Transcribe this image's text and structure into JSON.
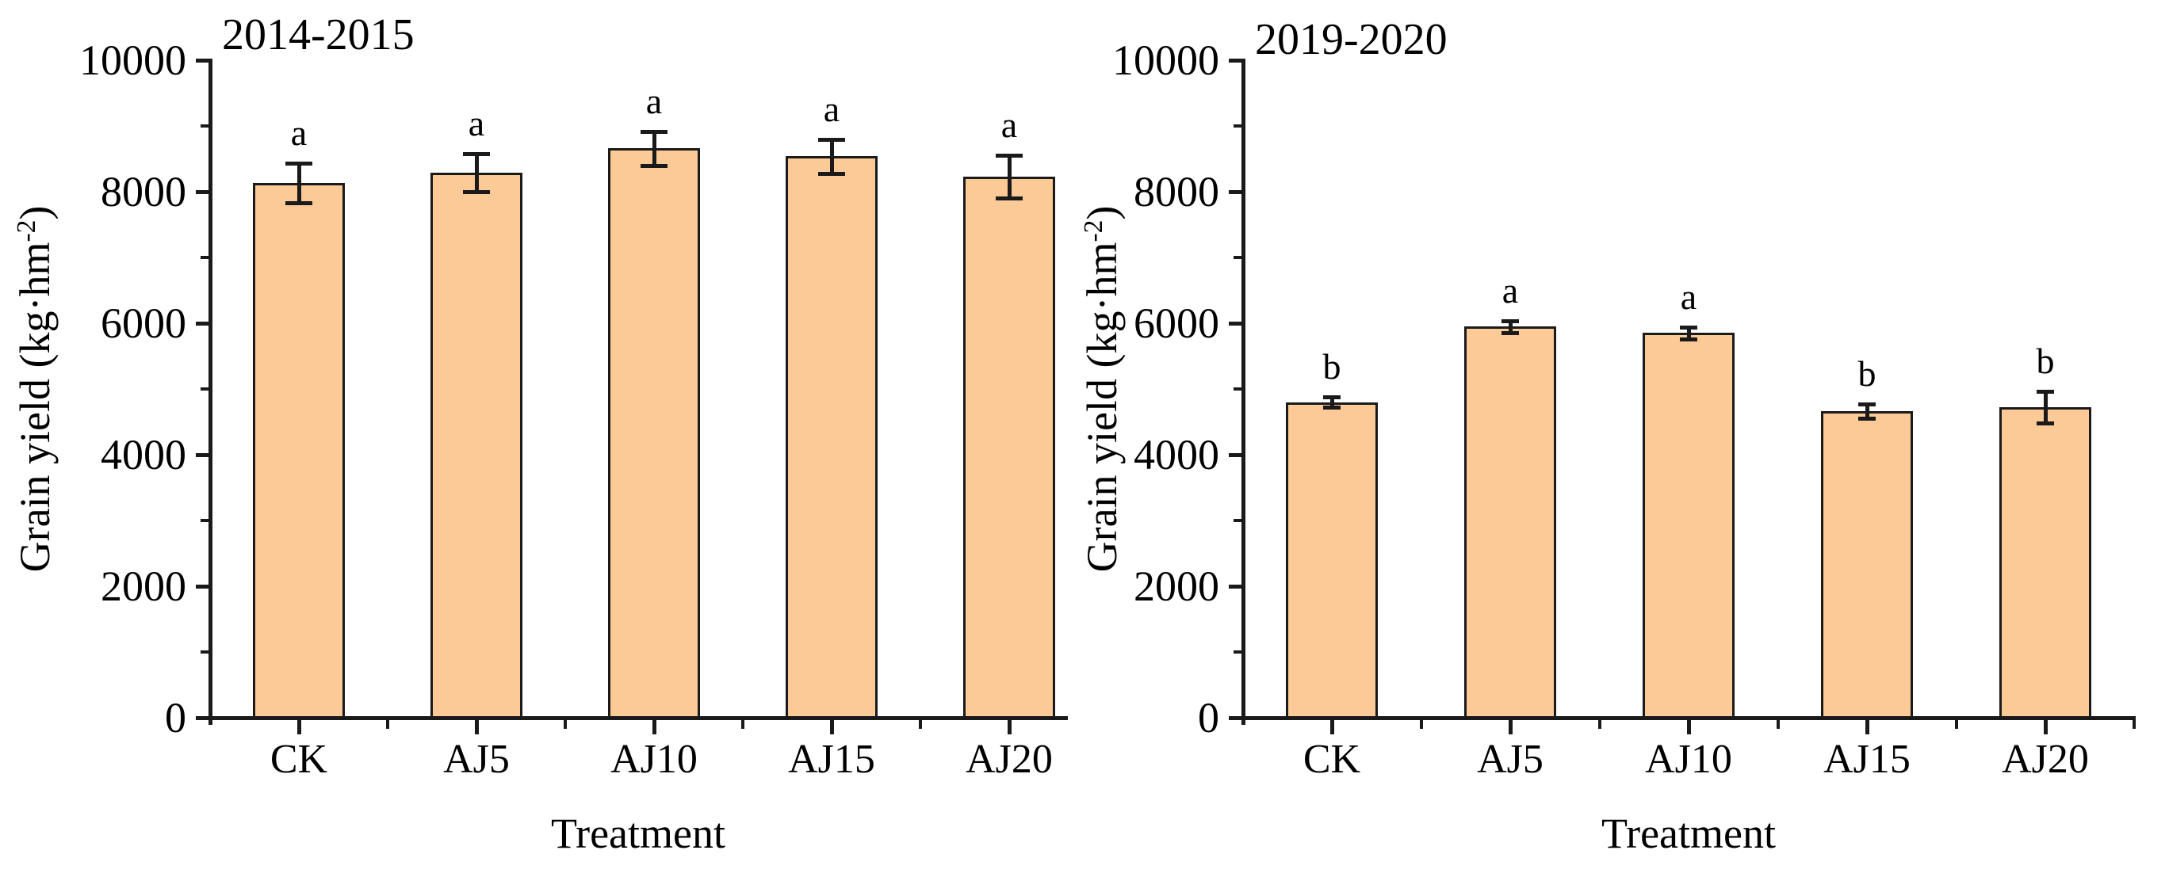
{
  "figure": {
    "background": "#ffffff",
    "bar_fill": "#FBCA96",
    "bar_border": "#1a1a1a",
    "text_color": "#000000"
  },
  "chart_data": [
    {
      "type": "bar",
      "title": "2014-2015",
      "categories": [
        "CK",
        "AJ5",
        "AJ10",
        "AJ15",
        "AJ20"
      ],
      "values": [
        8130,
        8290,
        8660,
        8540,
        8230
      ],
      "error_bars": [
        300,
        290,
        260,
        260,
        330
      ],
      "sig_letters": [
        "a",
        "a",
        "a",
        "a",
        "a"
      ],
      "xlabel": "Treatment",
      "ylabel": "Grain yield (kg·hm⁻²)",
      "ylabel_base": "Grain yield (kg·hm",
      "ylabel_sup": "-2",
      "ylabel_end": ")",
      "ylim": [
        0,
        10000
      ],
      "yticks": [
        "10000",
        "8000",
        "6000",
        "4000",
        "2000",
        "0"
      ],
      "ytick_values": [
        10000,
        8000,
        6000,
        4000,
        2000,
        0
      ],
      "minor_ytick_values": [
        9000,
        7000,
        5000,
        3000,
        1000
      ],
      "grid": "off",
      "legend": "none"
    },
    {
      "type": "bar",
      "title": "2019-2020",
      "categories": [
        "CK",
        "AJ5",
        "AJ10",
        "AJ15",
        "AJ20"
      ],
      "values": [
        4800,
        5950,
        5850,
        4660,
        4720
      ],
      "error_bars": [
        80,
        90,
        90,
        110,
        240
      ],
      "sig_letters": [
        "b",
        "a",
        "a",
        "b",
        "b"
      ],
      "xlabel": "Treatment",
      "ylabel": "Grain yield (kg·hm⁻²)",
      "ylabel_base": "Grain yield (kg·hm",
      "ylabel_sup": "-2",
      "ylabel_end": ")",
      "ylim": [
        0,
        10000
      ],
      "yticks": [
        "10000",
        "8000",
        "6000",
        "4000",
        "2000",
        "0"
      ],
      "ytick_values": [
        10000,
        8000,
        6000,
        4000,
        2000,
        0
      ],
      "minor_ytick_values": [
        9000,
        7000,
        5000,
        3000,
        1000
      ],
      "grid": "off",
      "legend": "none"
    }
  ]
}
